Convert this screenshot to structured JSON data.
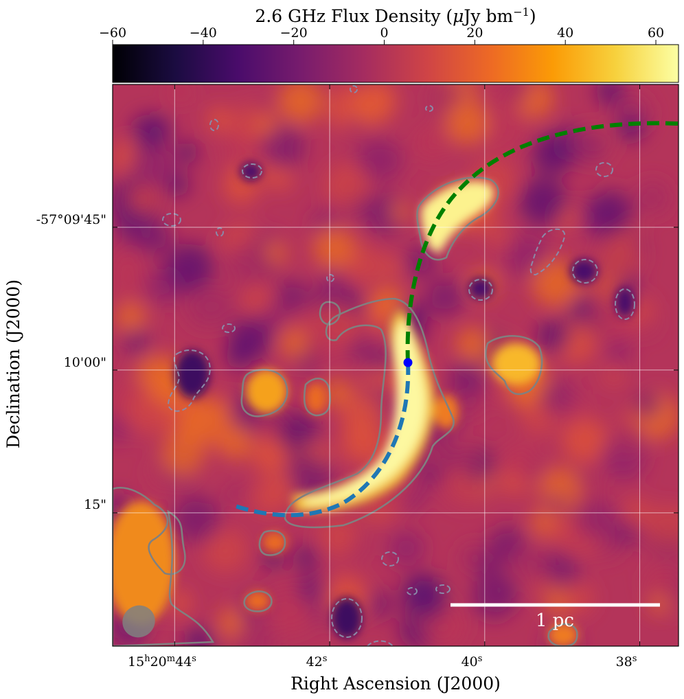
{
  "chart_data": {
    "type": "heatmap",
    "colorbar": {
      "label_main": "2.6 GHz Flux Density (",
      "label_mu": "μ",
      "label_unit": "Jy bm",
      "label_exp": "−1",
      "label_close": ")",
      "range": [
        -60,
        65
      ],
      "ticks": [
        -60,
        -40,
        -20,
        0,
        20,
        40,
        60
      ],
      "tick_labels": [
        "−60",
        "−40",
        "−20",
        "0",
        "20",
        "40",
        "60"
      ],
      "colormap": "inferno",
      "stops": [
        "#000004",
        "#1b0c41",
        "#4a0c6b",
        "#781c6d",
        "#a52c60",
        "#cf4446",
        "#ed6925",
        "#fb9b06",
        "#f7d13d",
        "#fcffa4"
      ]
    },
    "xlabel": "Right Ascension (J2000)",
    "ylabel": "Declination (J2000)",
    "x_ticks": [
      {
        "hms": "15",
        "h": "h",
        "mid": "20",
        "m": "m",
        "sec": "44",
        "s": "s",
        "ra_sec": 44.0
      },
      {
        "sec": "42",
        "s": "s",
        "ra_sec": 42.0
      },
      {
        "sec": "40",
        "s": "s",
        "ra_sec": 40.0
      },
      {
        "sec": "38",
        "s": "s",
        "ra_sec": 38.0
      }
    ],
    "y_ticks": [
      {
        "label": "-57°09'45\"",
        "dec_arcsec": -45
      },
      {
        "label": "10'00\"",
        "dec_arcsec": -60
      },
      {
        "label": "15\"",
        "dec_arcsec": -75
      }
    ],
    "ra_range_sec": [
      44.8,
      37.5
    ],
    "dec_range_arcsec": [
      -30,
      -89
    ],
    "grid": true,
    "scale_bar": {
      "label": "1 pc"
    },
    "overlays": {
      "fit_arc_green": {
        "color": "#008000",
        "style": "dashed"
      },
      "fit_arc_blue": {
        "color": "#1f77b4",
        "style": "dashed"
      },
      "center_point": {
        "color": "#0000ff"
      },
      "beam": {
        "color": "#808080"
      },
      "contours": {
        "color": "#808080",
        "positive": "solid",
        "negative": "dashed"
      }
    },
    "sources": [
      {
        "name": "central arc",
        "peak": 65
      },
      {
        "name": "northern knot",
        "peak": 60
      },
      {
        "name": "western blob",
        "peak": 45
      },
      {
        "name": "eastern blob",
        "peak": 50
      },
      {
        "name": "south-west corner",
        "peak": 45
      }
    ]
  }
}
